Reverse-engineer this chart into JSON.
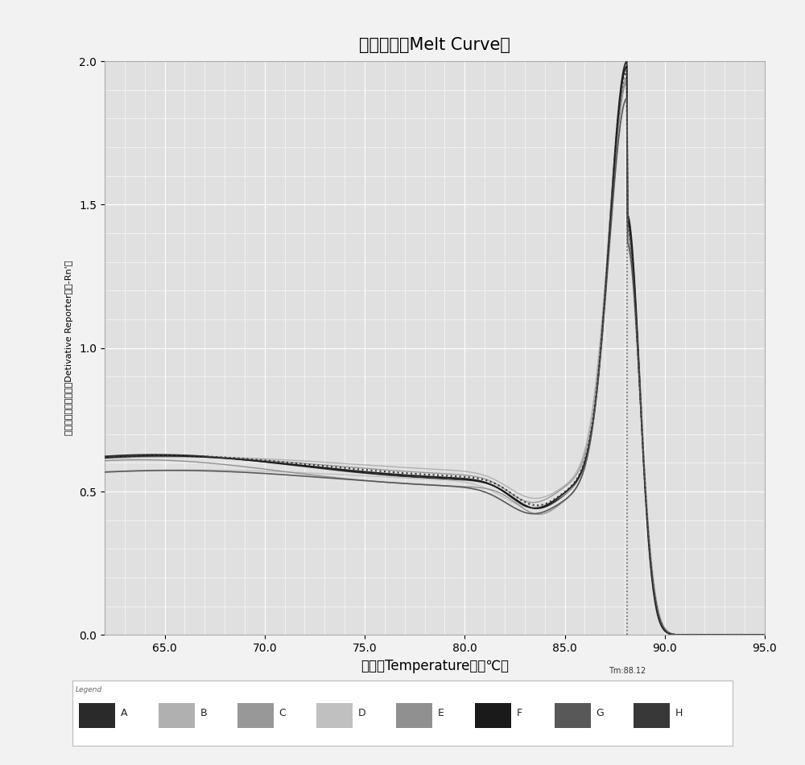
{
  "title": "溶解曲线（Melt Curve）",
  "xlabel": "温度（Temperature）（℃）",
  "ylabel": "荺光值对温度的导数（Detivative Reporter）（-Rn'）",
  "xlim": [
    62.0,
    95.0
  ],
  "ylim": [
    0.0,
    2.0
  ],
  "xticks": [
    65.0,
    70.0,
    75.0,
    80.0,
    85.0,
    90.0,
    95.0
  ],
  "yticks": [
    0.0,
    0.5,
    1.0,
    1.5,
    2.0
  ],
  "tm_label": "Tm:88.12",
  "tm_value": 88.12,
  "background_color": "#f0f0f0",
  "plot_bg_color": "#e8e8e8",
  "grid_color": "#ffffff",
  "legend_labels": [
    "A",
    "B",
    "C",
    "D",
    "E",
    "F",
    "G",
    "H"
  ],
  "legend_colors": [
    "#2a2a2a",
    "#b0b0b0",
    "#989898",
    "#c0c0c0",
    "#909090",
    "#1a1a1a",
    "#585858",
    "#383838"
  ],
  "curve_colors": [
    "#2a2a2a",
    "#b0b0b0",
    "#989898",
    "#c0c0c0",
    "#909090",
    "#1a1a1a",
    "#585858",
    "#383838"
  ],
  "curve_styles": [
    "-",
    "-",
    "-",
    "-",
    "-",
    "-",
    "-",
    ":"
  ],
  "curve_linewidths": [
    1.3,
    1.0,
    1.0,
    1.0,
    1.0,
    1.3,
    1.2,
    1.5
  ],
  "title_fontsize": 15,
  "axis_fontsize": 12,
  "tick_fontsize": 10
}
